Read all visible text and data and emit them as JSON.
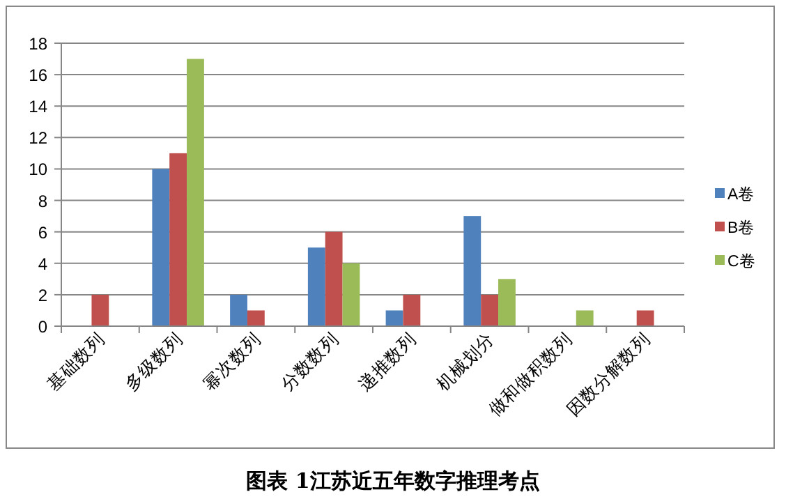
{
  "chart_data": {
    "type": "bar",
    "title": "图表 1江苏近五年数字推理考点",
    "categories": [
      "基础数列",
      "多级数列",
      "幂次数列",
      "分数数列",
      "递推数列",
      "机械划分",
      "做和做积数列",
      "因数分解数列"
    ],
    "series": [
      {
        "name": "A卷",
        "color": "#4f81bd",
        "values": [
          null,
          10,
          2,
          5,
          1,
          7,
          null,
          null
        ]
      },
      {
        "name": "B卷",
        "color": "#c0504d",
        "values": [
          2,
          11,
          1,
          6,
          2,
          2,
          null,
          1
        ]
      },
      {
        "name": "C卷",
        "color": "#9bbb59",
        "values": [
          null,
          17,
          null,
          4,
          null,
          3,
          1,
          null
        ]
      }
    ],
    "ylim": [
      0,
      18
    ],
    "yticks": [
      0,
      2,
      4,
      6,
      8,
      10,
      12,
      14,
      16,
      18
    ],
    "grid": "y",
    "legend": "right"
  }
}
